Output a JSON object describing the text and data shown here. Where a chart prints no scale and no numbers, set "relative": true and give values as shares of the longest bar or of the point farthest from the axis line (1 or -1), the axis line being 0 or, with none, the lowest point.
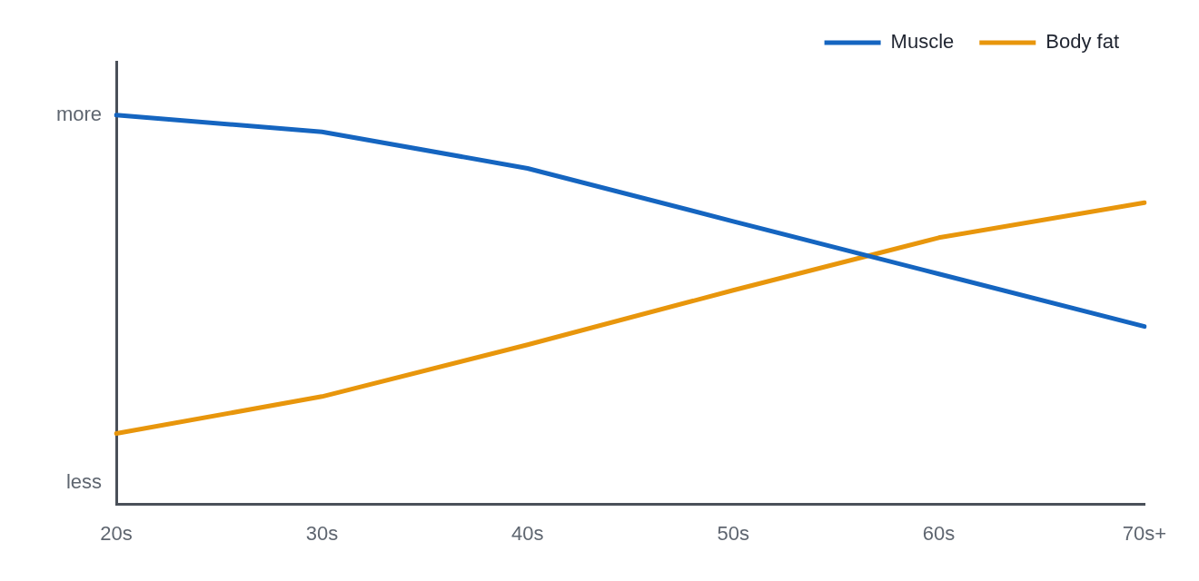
{
  "chart_data": {
    "type": "line",
    "relative": true,
    "categories": [
      "20s",
      "30s",
      "40s",
      "50s",
      "60s",
      "70s+"
    ],
    "series": [
      {
        "name": "Muscle",
        "color": "#1565c0",
        "values": [
          1,
          0.957,
          0.863,
          0.727,
          0.592,
          0.457
        ]
      },
      {
        "name": "Body fat",
        "color": "#e8960c",
        "values": [
          0.182,
          0.277,
          0.41,
          0.55,
          0.685,
          0.775
        ]
      }
    ],
    "annotations": [
      "more",
      "less"
    ],
    "legend": "top right",
    "grid": false,
    "marker": "none",
    "line_style": "solid"
  }
}
